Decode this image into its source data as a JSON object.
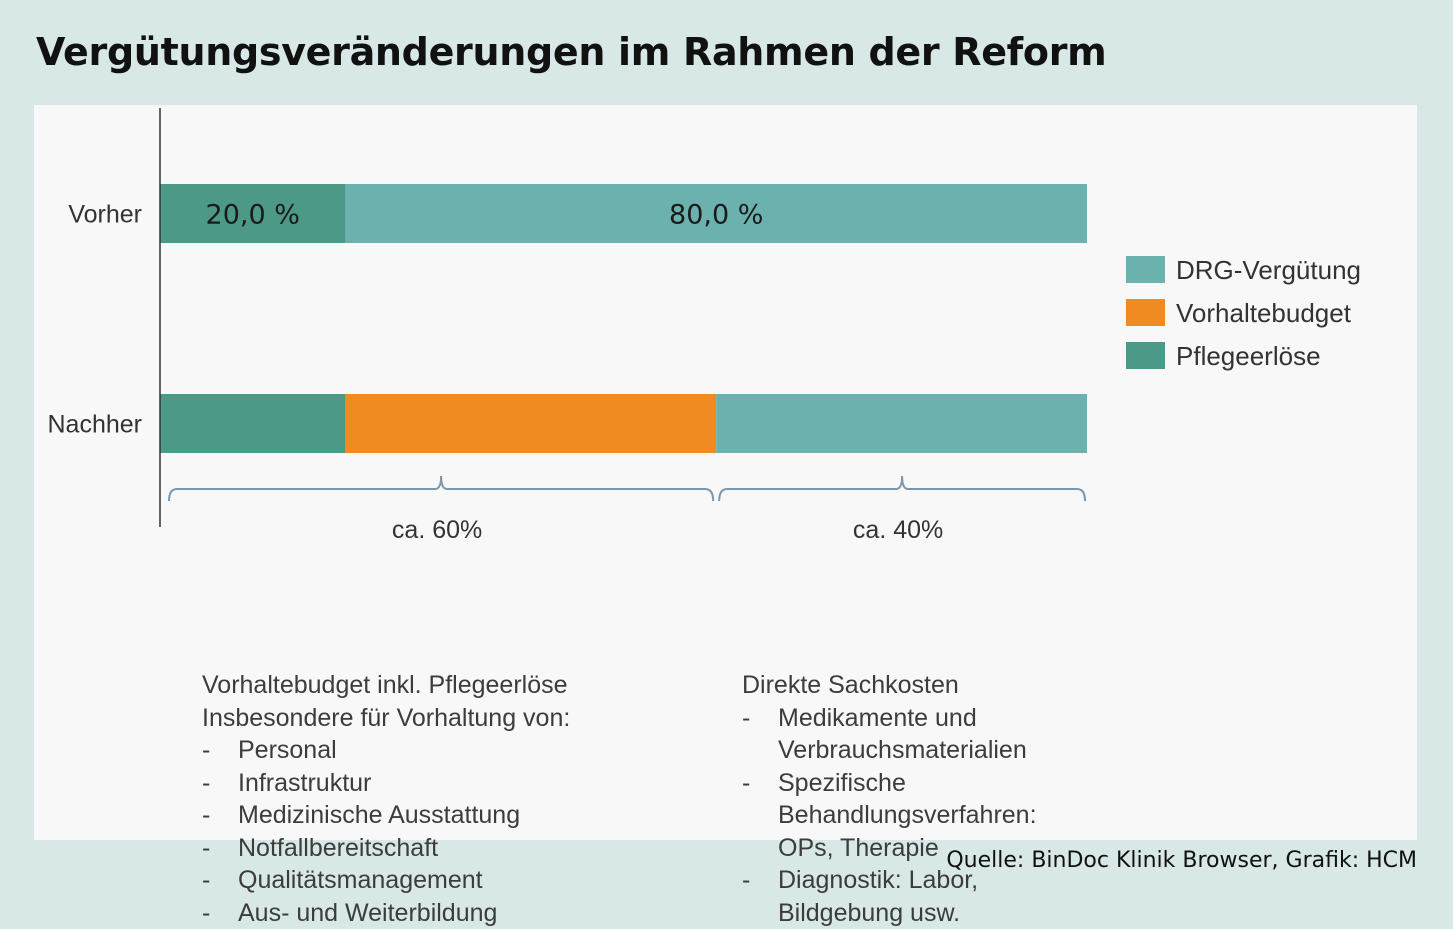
{
  "title": "Vergütungsveränderungen im Rahmen der Reform",
  "source": "Quelle: BinDoc Klinik Browser, Grafik: HCM",
  "colors": {
    "drg": "#6bb1ad",
    "vorhalte": "#f08b21",
    "pflege": "#4b9986",
    "background": "#d7e8e7",
    "panel": "#f8f8f8"
  },
  "chart_data": {
    "type": "bar",
    "orientation": "horizontal",
    "stacked": true,
    "categories": [
      "Vorher",
      "Nachher"
    ],
    "xlim": [
      0,
      100
    ],
    "grid": false,
    "legend_position": "right",
    "series": [
      {
        "name": "Pflegeerlöse",
        "color": "#4b9986",
        "values": [
          20,
          20
        ]
      },
      {
        "name": "Vorhaltebudget",
        "color": "#f08b21",
        "values": [
          0,
          40
        ]
      },
      {
        "name": "DRG-Vergütung",
        "color": "#6bb1ad",
        "values": [
          80,
          40
        ]
      }
    ],
    "data_labels": [
      {
        "category": "Vorher",
        "series": "Pflegeerlöse",
        "text": "20,0 %"
      },
      {
        "category": "Vorher",
        "series": "DRG-Vergütung",
        "text": "80,0 %"
      }
    ],
    "legend": [
      "DRG-Vergütung",
      "Vorhaltebudget",
      "Pflegeerlöse"
    ],
    "annotations": [
      {
        "label": "ca. 60%",
        "range": [
          0,
          60
        ]
      },
      {
        "label": "ca. 40%",
        "range": [
          60,
          100
        ]
      }
    ]
  },
  "notes": {
    "left": {
      "lines": [
        "Vorhaltebudget inkl. Pflegeerlöse",
        "Insbesondere für Vorhaltung von:"
      ],
      "items": [
        "Personal",
        "Infrastruktur",
        "Medizinische Ausstattung",
        "Notfallbereitschaft",
        "Qualitätsmanagement",
        "Aus- und Weiterbildung"
      ]
    },
    "right": {
      "lines": [
        "Direkte Sachkosten"
      ],
      "items": [
        "Medikamente und Verbrauchsmaterialien",
        "Spezifische Behandlungsverfahren: OPs, Therapie",
        "Diagnostik: Labor, Bildgebung usw."
      ]
    }
  }
}
